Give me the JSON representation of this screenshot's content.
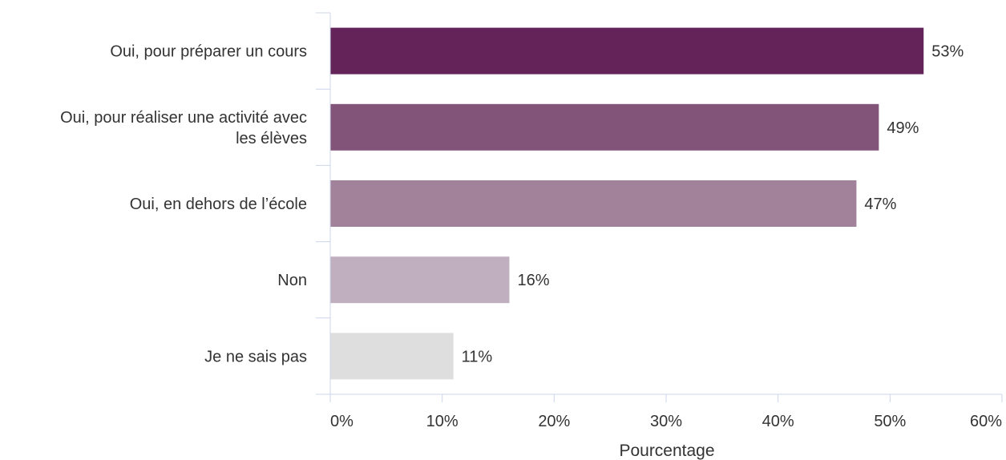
{
  "chart_data": {
    "type": "bar",
    "orientation": "horizontal",
    "categories": [
      [
        "Oui, pour préparer un cours"
      ],
      [
        "Oui, pour réaliser une activité avec",
        "les élèves"
      ],
      [
        "Oui, en dehors de l’école"
      ],
      [
        "Non"
      ],
      [
        "Je ne sais pas"
      ]
    ],
    "values": [
      53,
      49,
      47,
      16,
      11
    ],
    "value_labels": [
      "53%",
      "49%",
      "47%",
      "16%",
      "11%"
    ],
    "colors": [
      "#64245a",
      "#835479",
      "#a2829b",
      "#c0afbf",
      "#dedede"
    ],
    "xlim": [
      0,
      60
    ],
    "xticks": [
      0,
      10,
      20,
      30,
      40,
      50,
      60
    ],
    "xtick_labels": [
      "0%",
      "10%",
      "20%",
      "30%",
      "40%",
      "50%",
      "60%"
    ],
    "xlabel": "Pourcentage",
    "ylabel": "",
    "title": "",
    "grid": false,
    "legend": "none",
    "axis_color": "#ccd6eb"
  }
}
